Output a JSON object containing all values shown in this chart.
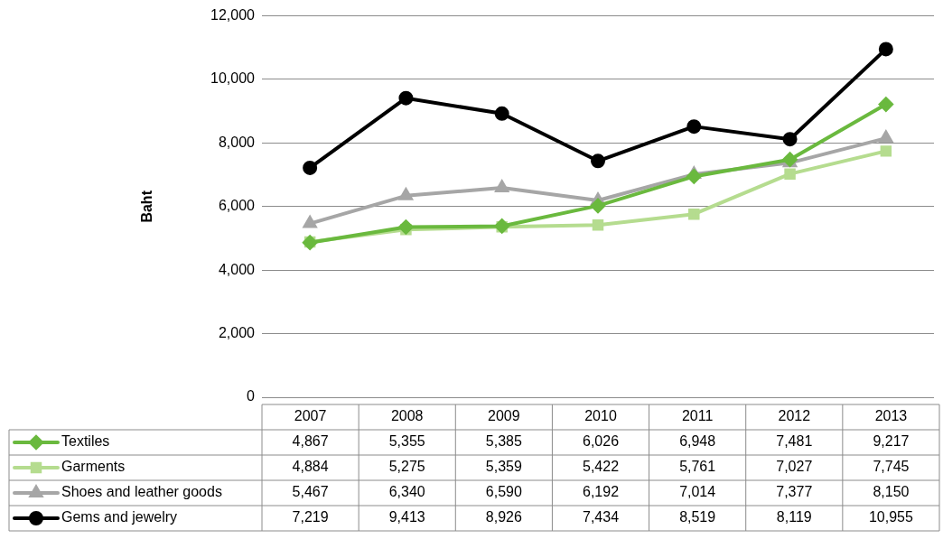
{
  "chart_data": {
    "type": "line",
    "ylabel": "Baht",
    "categories": [
      "2007",
      "2008",
      "2009",
      "2010",
      "2011",
      "2012",
      "2013"
    ],
    "series": [
      {
        "name": "Textiles",
        "color": "#6ab93e",
        "marker": "diamond",
        "values": [
          4867,
          5355,
          5385,
          6026,
          6948,
          7481,
          9217
        ],
        "value_labels": [
          "4,867",
          "5,355",
          "5,385",
          "6,026",
          "6,948",
          "7,481",
          "9,217"
        ]
      },
      {
        "name": "Garments",
        "color": "#b5dc8f",
        "marker": "square",
        "values": [
          4884,
          5275,
          5359,
          5422,
          5761,
          7027,
          7745
        ],
        "value_labels": [
          "4,884",
          "5,275",
          "5,359",
          "5,422",
          "5,761",
          "7,027",
          "7,745"
        ]
      },
      {
        "name": "Shoes and leather goods",
        "color": "#a6a6a6",
        "marker": "triangle",
        "values": [
          5467,
          6340,
          6590,
          6192,
          7014,
          7377,
          8150
        ],
        "value_labels": [
          "5,467",
          "6,340",
          "6,590",
          "6,192",
          "7,014",
          "7,377",
          "8,150"
        ]
      },
      {
        "name": "Gems and jewelry",
        "color": "#000000",
        "marker": "circle",
        "values": [
          7219,
          9413,
          8926,
          7434,
          8519,
          8119,
          10955
        ],
        "value_labels": [
          "7,219",
          "9,413",
          "8,926",
          "7,434",
          "8,519",
          "8,119",
          "10,955"
        ]
      }
    ],
    "ylim": [
      0,
      12000
    ],
    "yticks": [
      0,
      {
        "value": 2000,
        "label": "2,000"
      },
      {
        "value": 4000,
        "label": "4,000"
      },
      {
        "value": 6000,
        "label": "6,000"
      },
      {
        "value": 8000,
        "label": "8,000"
      },
      {
        "value": 10000,
        "label": "10,000"
      },
      {
        "value": 12000,
        "label": "12,000"
      }
    ],
    "grid": "y",
    "legend": "bottom left"
  }
}
